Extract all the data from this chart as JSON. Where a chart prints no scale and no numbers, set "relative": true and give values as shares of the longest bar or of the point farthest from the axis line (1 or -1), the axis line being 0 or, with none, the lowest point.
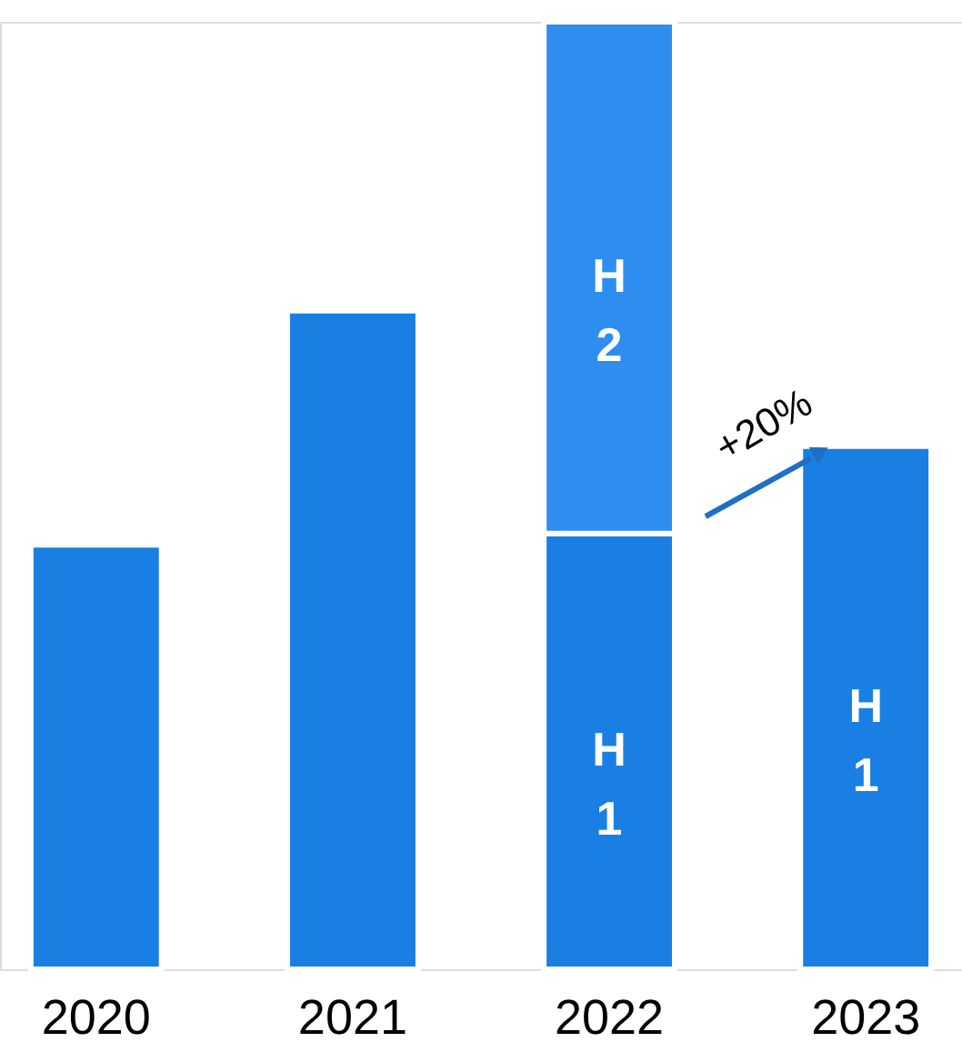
{
  "chart_data": {
    "type": "bar",
    "relative": true,
    "stacked": true,
    "categories": [
      "2020",
      "2021",
      "2022",
      "2023"
    ],
    "series": [
      {
        "color": "#1a7fe3",
        "values": [
          0.448,
          0.695,
          null,
          null
        ]
      },
      {
        "name": "H1",
        "color": "#1a7fe3",
        "values": [
          null,
          null,
          0.46,
          0.552
        ]
      },
      {
        "name": "H2",
        "color": "#2e8ef0",
        "values": [
          null,
          null,
          0.54,
          null
        ]
      }
    ],
    "annotations": [
      "+20%"
    ]
  }
}
